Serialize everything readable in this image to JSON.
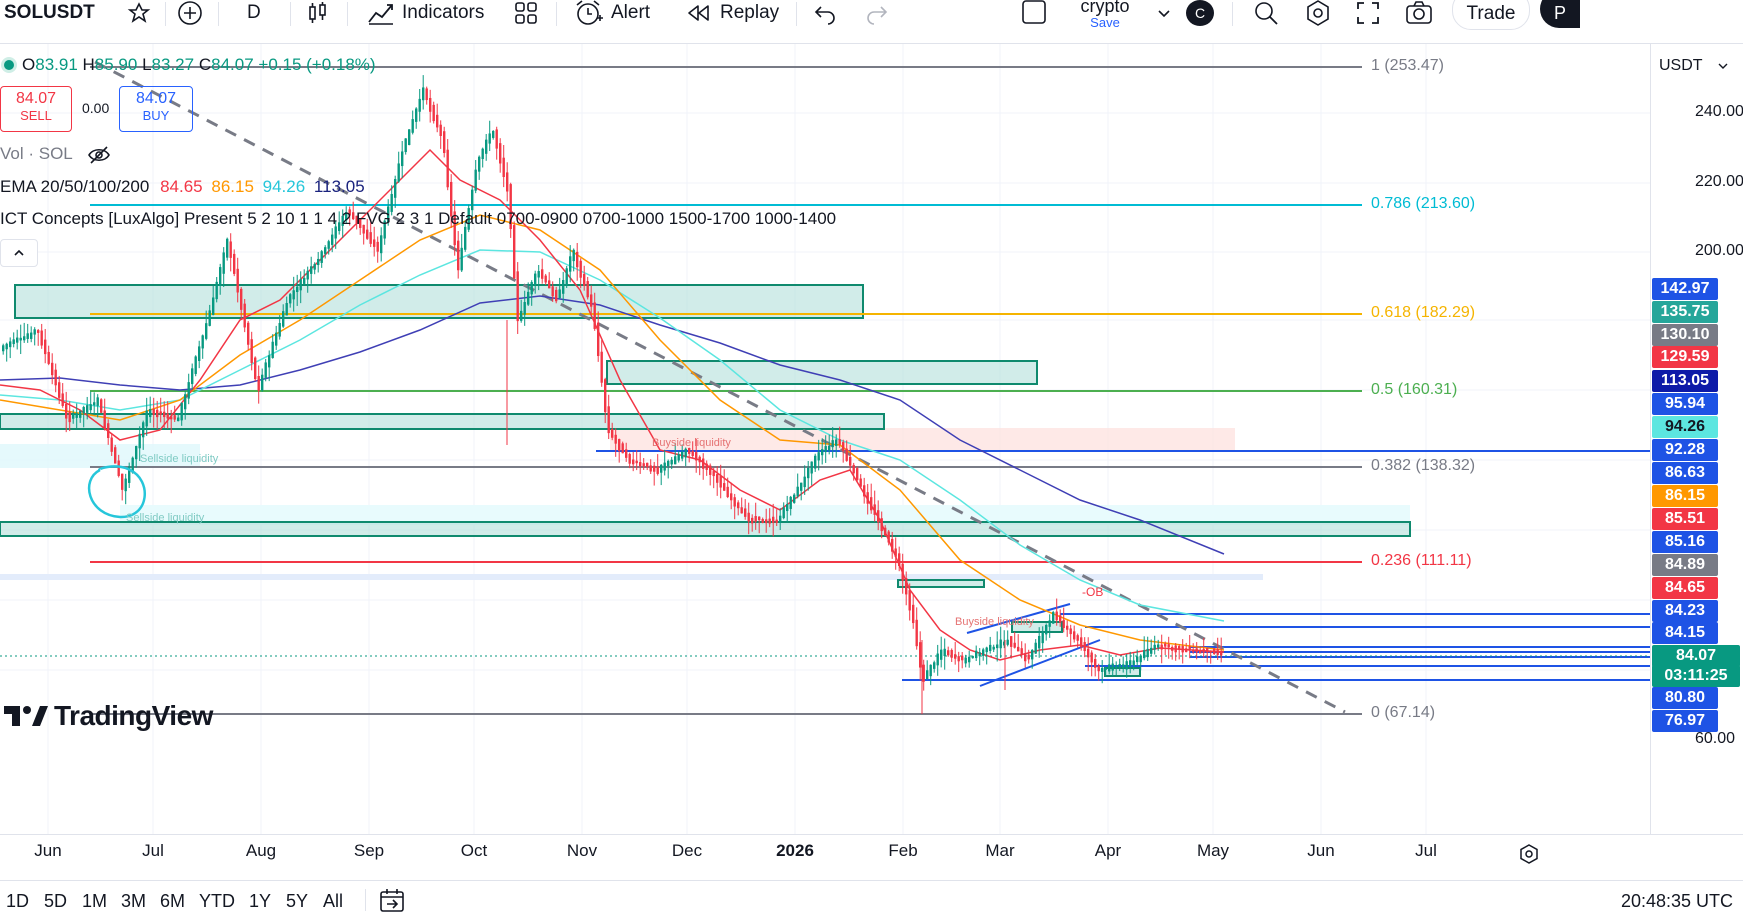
{
  "toolbar": {
    "symbol": "SOLUSDT",
    "interval": "D",
    "indicators_label": "Indicators",
    "alert_label": "Alert",
    "replay_label": "Replay",
    "layout_name": "crypto",
    "layout_save": "Save",
    "avatar_letter": "C",
    "trade_label": "Trade",
    "publish_letter": "P"
  },
  "legend": {
    "ohlc": {
      "o_label": "O",
      "o": "83.91",
      "h_label": "H",
      "h": "85.90",
      "l_label": "L",
      "l": "83.27",
      "c_label": "C",
      "c": "84.07",
      "change": "+0.15 (+0.18%)"
    },
    "sell_price": "84.07",
    "sell_label": "SELL",
    "spread": "0.00",
    "buy_price": "84.07",
    "buy_label": "BUY",
    "vol_label": "Vol · SOL",
    "ema_label": "EMA 20/50/100/200",
    "ema_values": [
      "84.65",
      "86.15",
      "94.26",
      "113.05"
    ],
    "ict_label": "ICT Concepts [LuxAlgo] Present 5 2 10 1 1 4 2 FVG 2 3 1 Default 0700-0900 0700-1000 1500-1700 1000-1400"
  },
  "price_axis": {
    "currency": "USDT",
    "ticks": [
      "240.00",
      "220.00",
      "200.00",
      "60.00"
    ]
  },
  "badges": [
    {
      "value": "142.97",
      "color": "#1e53e5"
    },
    {
      "value": "135.75",
      "color": "#26a69a"
    },
    {
      "value": "130.10",
      "color": "#787b86"
    },
    {
      "value": "129.59",
      "color": "#f23645"
    },
    {
      "value": "113.05",
      "color": "#0d1aa8"
    },
    {
      "value": "95.94",
      "color": "#1e53e5"
    },
    {
      "value": "94.26",
      "color": "#5ce6e0"
    },
    {
      "value": "92.28",
      "color": "#1e53e5"
    },
    {
      "value": "86.63",
      "color": "#1e53e5"
    },
    {
      "value": "86.15",
      "color": "#ff9800"
    },
    {
      "value": "85.51",
      "color": "#f23645"
    },
    {
      "value": "85.16",
      "color": "#1e53e5"
    },
    {
      "value": "84.89",
      "color": "#787b86"
    },
    {
      "value": "84.65",
      "color": "#f23645"
    },
    {
      "value": "84.23",
      "color": "#1e53e5"
    },
    {
      "value": "84.15",
      "color": "#1e53e5"
    },
    {
      "value": "84.07",
      "color": "#089981"
    },
    {
      "value": "03:11:25",
      "color": "#089981"
    },
    {
      "value": "80.80",
      "color": "#1e53e5"
    },
    {
      "value": "76.97",
      "color": "#1e53e5"
    }
  ],
  "fib_levels": [
    {
      "label": "1 (253.47)",
      "color": "#787b86"
    },
    {
      "label": "0.786 (213.60)",
      "color": "#00bcd4"
    },
    {
      "label": "0.618 (182.29)",
      "color": "#f5b400"
    },
    {
      "label": "0.5 (160.31)",
      "color": "#4caf50"
    },
    {
      "label": "0.382 (138.32)",
      "color": "#787b86"
    },
    {
      "label": "0.236 (111.11)",
      "color": "#f23645"
    },
    {
      "label": "0 (67.14)",
      "color": "#787b86"
    }
  ],
  "chart_annotations": {
    "buyside_1": "Buyside liquidity",
    "buyside_2": "Buyside liquidity",
    "sellside_1": "Sellside liquidity",
    "sellside_2": "Sellside liquidity",
    "ob": "-OB"
  },
  "watermark": "TradingView",
  "time_axis": [
    "Jun",
    "Jul",
    "Aug",
    "Sep",
    "Oct",
    "Nov",
    "Dec",
    "2026",
    "Feb",
    "Mar",
    "Apr",
    "May",
    "Jun",
    "Jul"
  ],
  "ranges": [
    "1D",
    "5D",
    "1M",
    "3M",
    "6M",
    "YTD",
    "1Y",
    "5Y",
    "All"
  ],
  "clock": "20:48:35 UTC",
  "colors": {
    "up": "#089981",
    "down": "#f23645",
    "ema20": "#f23645",
    "ema50": "#ff9800",
    "ema100": "#5ce6e0",
    "ema200": "#3f3fb5"
  }
}
